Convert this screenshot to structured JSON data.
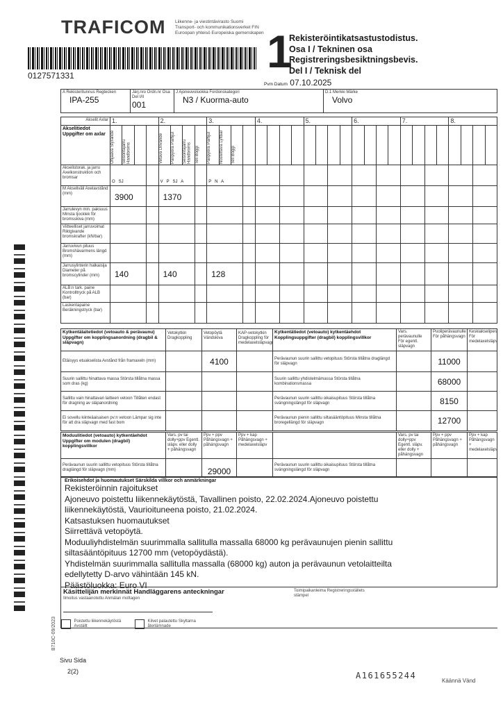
{
  "header": {
    "logo": "TRAFICOM",
    "agency_lines": [
      "Liikenne- ja viestintävirasto   Suomi",
      "Transport- och kommunikationsverket   FIN",
      "Euroopan yhteisö   Europeiska gemenskapen"
    ],
    "barcode_number": "0127571331",
    "section_number": "1",
    "title_lines": [
      "Rekisteröintikatsastustodistus.",
      "Osa I / Tekninen osa",
      "Registreringsbesiktningsbevis.",
      "Del I / Teknisk del"
    ],
    "date_label": "Pvm Datum",
    "date": "07.10.2025"
  },
  "vehicle": {
    "reg_label": "A Rekisteritunnus Regtecken",
    "reg": "IPA-255",
    "part_label": "Järj.nro Ordn.nr Osa Del I/II",
    "part": "001",
    "category_label": "J Ajoneuvoluokka Fordonskategori",
    "category": "N3 / Kuorma-auto",
    "make_label": "D.1 Merkki Märke",
    "make": "Volvo"
  },
  "axles": {
    "axle_label": "Akselit Axlar",
    "numbers": [
      "1.",
      "2.",
      "3.",
      "4.",
      "5.",
      "6.",
      "7.",
      "8."
    ],
    "section_title": "Akselitiedot Uppgifter om axlar",
    "sub_labels_1": [
      "Ohjaava Styrande",
      "Seisontajarru Handbroms"
    ],
    "sub_labels_2": [
      "Vetävä Drivande",
      "Paripyörä Parhjul",
      "Seisontajarru Handbroms",
      "Teli Boggi"
    ],
    "sub_labels_3": [
      "Paripyörä Parhjul",
      "Nostettava Lyftbar",
      "Teli Boggi"
    ],
    "rows": [
      {
        "label": "Akselistorak. ja jarru Axelkonstruktion och bromsar",
        "a1": "O   SJ",
        "a2": "V   P   SJ   A",
        "a3": "P   N   A"
      },
      {
        "label": "M Akseliväli Axelavstånd (mm)",
        "a1": "3900",
        "a2": "1370",
        "a3": ""
      },
      {
        "label": "Jarrulevyn min. paksuus Minsta tjocklek för bromsskiva (mm)",
        "a1": "",
        "a2": "",
        "a3": ""
      },
      {
        "label": "Viitteelliset jarruvoimat Riktgivande bromskrafter (kN/bar)",
        "a1": "",
        "a2": "",
        "a3": ""
      },
      {
        "label": "Jarruvivun pituus Bromshävarmens längd (mm)",
        "a1": "",
        "a2": "",
        "a3": ""
      },
      {
        "label": "Jarrusylinterin halkaisija Diameter på bromscylinder (mm)",
        "a1": "140",
        "a2": "140",
        "a3": "128"
      },
      {
        "label": "ALB:n tark. paine Kontrolltryck på ALB (bar)",
        "a1": "",
        "a2": "",
        "a3": ""
      },
      {
        "label": "Laskentapaine Beräkningstryck (bar)",
        "a1": "",
        "a2": "",
        "a3": ""
      }
    ]
  },
  "coupling": {
    "title": "Kytkentälaitetiedot (vetoauto & perävaunu) Uppgifter om kopplingsanordning (dragbil & släpvagn)",
    "cols": [
      "Vetokytkin Dragkoppling",
      "Vetopöytä Vändskiva",
      "KAP-vetokytkin Dragkoppling för medelaxelsläpvagn"
    ],
    "rows": [
      {
        "label": "Etäisyys etuakselista Avstånd från framaxeln (mm)",
        "values": [
          "",
          "4100",
          ""
        ]
      },
      {
        "label": "Suurin sallittu hinattava massa Största tillåtna massa som dras (kg)",
        "values": [
          "",
          "",
          ""
        ]
      },
      {
        "label": "Sallittu vain hinattavan laitteen vetoon Tillåten endast för dragning av släpanordning",
        "values": [
          "",
          "",
          ""
        ]
      },
      {
        "label": "Ei sovellu kiinteäaisaisen pv:n vetoon Lämpar sig inte för att dra släpvagn med fast bom",
        "values": [
          "",
          "",
          ""
        ]
      }
    ],
    "right_title": "Kytkentätiedot (vetoauto) kytkentäehdot Kopplingsuppgifter (dragbil) kopplingsvillkor",
    "right_cols": [
      "Vars. perävaunulle För egentl. släpvagn",
      "Puoliperävaunulle För påhängsvagn",
      "Keskiakseliperav. För medelaxelsläpv"
    ],
    "right_rows": [
      {
        "label": "Perävaunun suurin sallittu vetopituus Största tillåtna draglängd för släpvagn",
        "values": [
          "",
          "11000",
          ""
        ]
      },
      {
        "label": "Suurin sallittu yhdistelmämassa Största tillåtna kombinationsmassa",
        "values": [
          "",
          "68000",
          ""
        ]
      },
      {
        "label": "Perävaunun suurin sallittu oikaisupituus Största tillåtna svängningslängd för släpvagn",
        "values": [
          "",
          "8150",
          ""
        ]
      },
      {
        "label": "Perävaunun pienin sallittu siltasääntöpituus Minsta tillåtna broregellängd för släpvagn",
        "values": [
          "",
          "12700",
          ""
        ]
      }
    ]
  },
  "module": {
    "title": "Moduulitiedot (vetoauto) kytkentäehdot Uppgifter om modulen (dragbil) kopplingsvillkor",
    "cols": [
      "Vars. pv tai dolly+ppv Egentl. släpv. eller dolly + påhängsvagn",
      "Ppv + ppv Påhängsvagn + påhängsvagn",
      "Ppv + kap Påhängsvagn + medelaxelsläpv"
    ],
    "row": {
      "label": "Perävaunun suurin sallittu vetopituus Största tillåtna draglängd för släpvagn (mm)",
      "values": [
        "",
        "29000",
        ""
      ]
    },
    "right_row": {
      "label": "Perävaunun suurin sallittu oikaisupituus Största tillåtna svängningslängd för släpvagn",
      "values": [
        "",
        "",
        ""
      ]
    }
  },
  "remarks": {
    "title": "Erikoisehdot ja huomautukset Särskilda villkor och anmärkningar",
    "lines": [
      "Rekisteröinnin rajoitukset",
      "Ajoneuvo poistettu liikennekäytöstä, Tavallinen poisto, 22.02.2024.Ajoneuvo poistettu",
      "liikennekäytöstä, Vaurioituneena poisto, 21.02.2024.",
      "Katsastuksen huomautukset",
      "Siirrettävä vetopöytä.",
      "Moduuliyhdistelmän suurimmalla sallitulla massalla 68000 kg perävaunujen pienin sallittu",
      "siltasääntöpituus 12700 mm (vetopöydästä).",
      "Yhdistelmän suurimmalla sallitulla massalla (68000 kg) auton ja perävaunun vetolaitteilta",
      "edellytetty D-arvo vähintään 145 kN.",
      "Päästöluokka: Euro VI"
    ]
  },
  "handler": {
    "title": "Käsittelijän merkinnät Handläggarens anteckningar",
    "notice": "Ilmoitus vastaanotettu Anmälan mottagen",
    "stamp": "Toimipaikanleima Registreringsställets stämpel",
    "check1": "Poistettu liikennekäytöstä Avställt",
    "check2": "Kilvet palautettu Skyltarna återlämnade"
  },
  "footer": {
    "form_code": "B710C-09/2023",
    "page_label": "Sivu Sida",
    "page": "2(2)",
    "serial": "A161655244",
    "turn": "Käännä Vänd"
  }
}
